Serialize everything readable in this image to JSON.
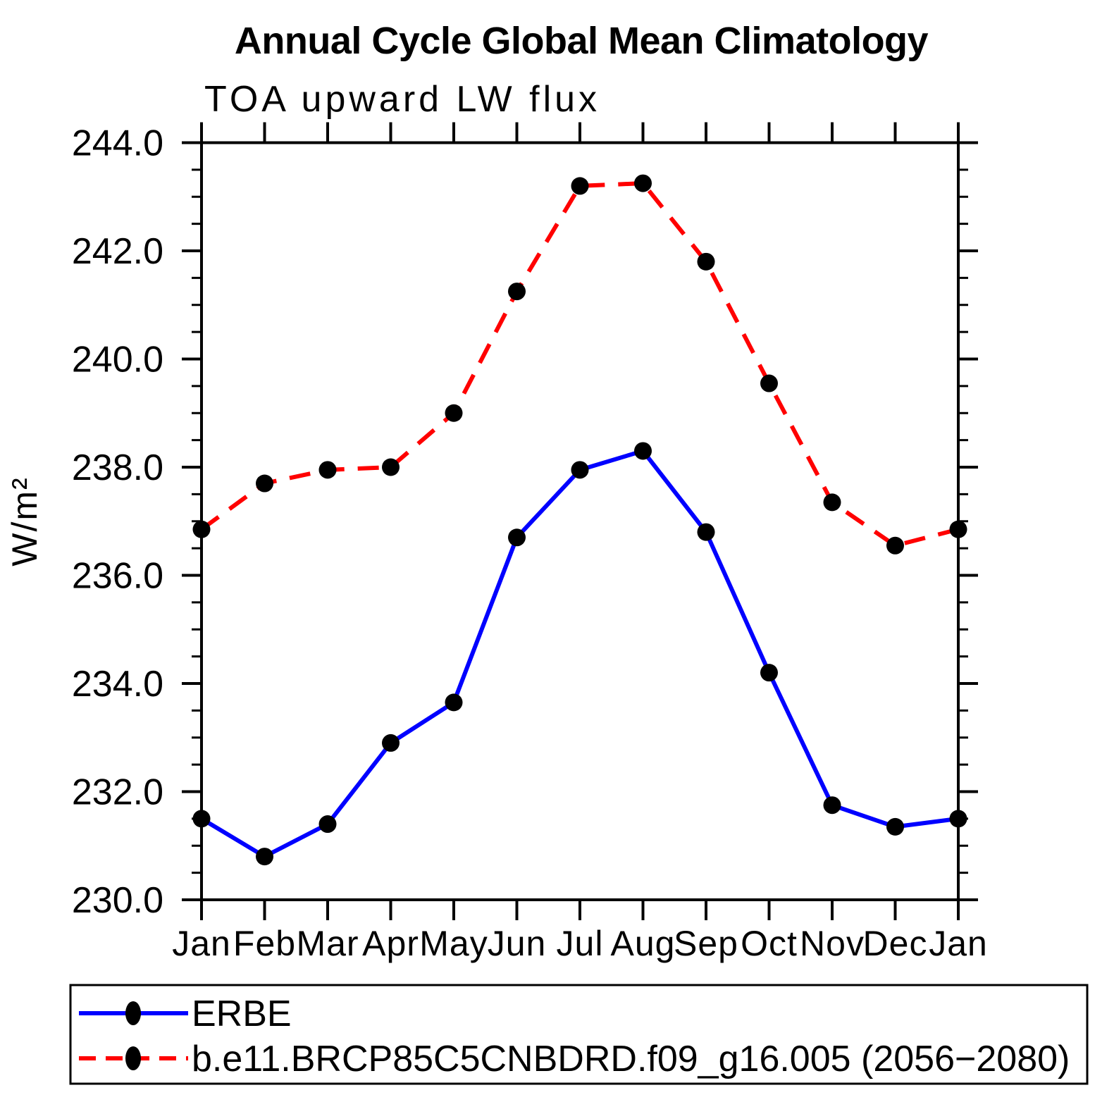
{
  "chart_data": {
    "type": "line",
    "title": "Annual Cycle Global Mean Climatology",
    "subtitle": "TOA upward LW flux",
    "ylabel": "W/m²",
    "xlabel": "",
    "categories": [
      "Jan",
      "Feb",
      "Mar",
      "Apr",
      "May",
      "Jun",
      "Jul",
      "Aug",
      "Sep",
      "Oct",
      "Nov",
      "Dec",
      "Jan"
    ],
    "ylim": [
      230.0,
      244.0
    ],
    "ytick_interval": 2.0,
    "ytick_minor_interval": 0.5,
    "ytick_labels": [
      "230.0",
      "232.0",
      "234.0",
      "236.0",
      "238.0",
      "240.0",
      "242.0",
      "244.0"
    ],
    "grid": false,
    "legend_position": "boxed legend below plot, left aligned",
    "background_color": "#ffffff",
    "axis_color": "#000000",
    "marker": {
      "shape": "circle",
      "color": "#000000"
    },
    "series": [
      {
        "name": "ERBE",
        "color": "#0000ff",
        "line_style": "solid",
        "values": [
          231.5,
          230.8,
          231.4,
          232.9,
          233.65,
          236.7,
          237.95,
          238.3,
          236.8,
          234.2,
          231.75,
          231.35,
          231.5
        ]
      },
      {
        "name": "b.e11.BRCP85C5CNBDRD.f09_g16.005 (2056−2080)",
        "color": "#ff0000",
        "line_style": "dashed",
        "values": [
          236.85,
          237.7,
          237.95,
          238.0,
          239.0,
          241.25,
          243.2,
          243.25,
          241.8,
          239.55,
          237.35,
          236.55,
          236.85
        ]
      }
    ]
  }
}
